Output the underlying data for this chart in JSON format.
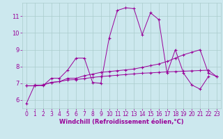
{
  "xlabel": "Windchill (Refroidissement éolien,°C)",
  "bg_color": "#cce8ee",
  "line_color": "#990099",
  "grid_color": "#aacccc",
  "x_values": [
    0,
    1,
    2,
    3,
    4,
    5,
    6,
    7,
    8,
    9,
    10,
    11,
    12,
    13,
    14,
    15,
    16,
    17,
    18,
    19,
    20,
    21,
    22,
    23
  ],
  "series1": [
    5.8,
    6.9,
    6.85,
    7.3,
    7.3,
    7.8,
    8.5,
    8.5,
    7.05,
    7.0,
    9.7,
    11.35,
    11.5,
    11.45,
    9.9,
    11.2,
    10.8,
    7.6,
    9.0,
    7.6,
    6.9,
    6.65,
    7.4,
    null
  ],
  "series2": [
    6.85,
    6.85,
    6.9,
    7.05,
    7.1,
    7.2,
    7.22,
    7.28,
    7.35,
    7.4,
    7.44,
    7.48,
    7.52,
    7.56,
    7.6,
    7.62,
    7.65,
    7.68,
    7.7,
    7.72,
    7.74,
    7.76,
    7.78,
    7.4
  ],
  "series3": [
    6.85,
    6.85,
    6.9,
    7.05,
    7.1,
    7.3,
    7.3,
    7.45,
    7.55,
    7.65,
    7.7,
    7.75,
    7.8,
    7.85,
    7.95,
    8.05,
    8.15,
    8.3,
    8.5,
    8.7,
    8.85,
    9.0,
    7.6,
    7.4
  ],
  "ylim": [
    5.5,
    11.8
  ],
  "xlim": [
    -0.5,
    23.5
  ],
  "yticks": [
    6,
    7,
    8,
    9,
    10,
    11
  ],
  "xticks": [
    0,
    1,
    2,
    3,
    4,
    5,
    6,
    7,
    8,
    9,
    10,
    11,
    12,
    13,
    14,
    15,
    16,
    17,
    18,
    19,
    20,
    21,
    22,
    23
  ],
  "marker": "+",
  "markersize": 3,
  "linewidth": 0.7,
  "tick_fontsize": 5.5,
  "xlabel_fontsize": 6.0
}
